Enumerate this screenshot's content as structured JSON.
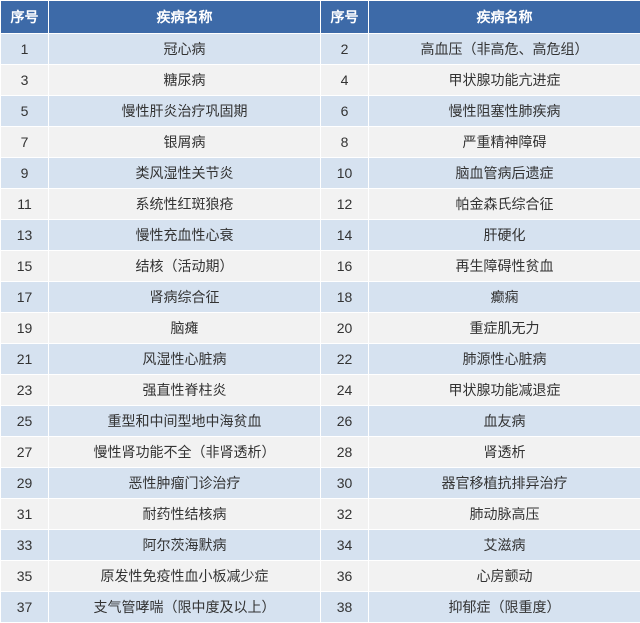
{
  "header": {
    "seq": "序号",
    "name": "疾病名称"
  },
  "rows": [
    {
      "s1": "1",
      "n1": "冠心病",
      "s2": "2",
      "n2": "高血压（非高危、高危组）"
    },
    {
      "s1": "3",
      "n1": "糖尿病",
      "s2": "4",
      "n2": "甲状腺功能亢进症"
    },
    {
      "s1": "5",
      "n1": "慢性肝炎治疗巩固期",
      "s2": "6",
      "n2": "慢性阻塞性肺疾病"
    },
    {
      "s1": "7",
      "n1": "银屑病",
      "s2": "8",
      "n2": "严重精神障碍"
    },
    {
      "s1": "9",
      "n1": "类风湿性关节炎",
      "s2": "10",
      "n2": "脑血管病后遗症"
    },
    {
      "s1": "11",
      "n1": "系统性红斑狼疮",
      "s2": "12",
      "n2": "帕金森氏综合征"
    },
    {
      "s1": "13",
      "n1": "慢性充血性心衰",
      "s2": "14",
      "n2": "肝硬化"
    },
    {
      "s1": "15",
      "n1": "结核（活动期）",
      "s2": "16",
      "n2": "再生障碍性贫血"
    },
    {
      "s1": "17",
      "n1": "肾病综合征",
      "s2": "18",
      "n2": "癫痫"
    },
    {
      "s1": "19",
      "n1": "脑瘫",
      "s2": "20",
      "n2": "重症肌无力"
    },
    {
      "s1": "21",
      "n1": "风湿性心脏病",
      "s2": "22",
      "n2": "肺源性心脏病"
    },
    {
      "s1": "23",
      "n1": "强直性脊柱炎",
      "s2": "24",
      "n2": "甲状腺功能减退症"
    },
    {
      "s1": "25",
      "n1": "重型和中间型地中海贫血",
      "s2": "26",
      "n2": "血友病"
    },
    {
      "s1": "27",
      "n1": "慢性肾功能不全（非肾透析）",
      "s2": "28",
      "n2": "肾透析"
    },
    {
      "s1": "29",
      "n1": "恶性肿瘤门诊治疗",
      "s2": "30",
      "n2": "器官移植抗排异治疗"
    },
    {
      "s1": "31",
      "n1": "耐药性结核病",
      "s2": "32",
      "n2": "肺动脉高压"
    },
    {
      "s1": "33",
      "n1": "阿尔茨海默病",
      "s2": "34",
      "n2": "艾滋病"
    },
    {
      "s1": "35",
      "n1": "原发性免疫性血小板减少症",
      "s2": "36",
      "n2": "心房颤动"
    },
    {
      "s1": "37",
      "n1": "支气管哮喘（限中度及以上）",
      "s2": "38",
      "n2": "抑郁症（限重度）"
    }
  ],
  "style": {
    "header_bg": "#3d6aa8",
    "header_fg": "#ffffff",
    "odd_bg": "#d6e2f0",
    "even_bg": "#f2f2f2",
    "text_color": "#333333",
    "font_size": 14
  }
}
